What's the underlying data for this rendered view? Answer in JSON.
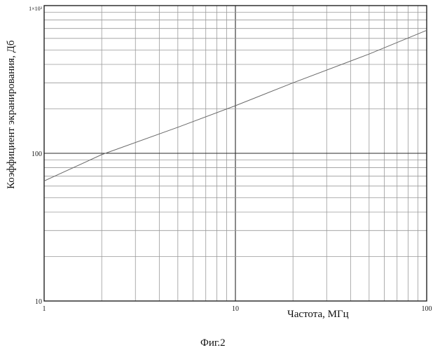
{
  "figure_caption": "Фиг.2",
  "chart_data": {
    "type": "line",
    "xlabel": "Частота, МГц",
    "ylabel": "Коэффициент экранирования, Дб",
    "x_scale": "log",
    "y_scale": "log",
    "xlim": [
      1,
      100
    ],
    "ylim": [
      10,
      1000
    ],
    "x_ticks": [
      {
        "value": 1,
        "label": "1"
      },
      {
        "value": 10,
        "label": "10"
      },
      {
        "value": 100,
        "label": "100"
      }
    ],
    "y_ticks": [
      {
        "value": 10,
        "label": "10"
      },
      {
        "value": 100,
        "label": "100"
      },
      {
        "value": 1000,
        "label": "1×10³"
      }
    ],
    "grid": true,
    "series": [
      {
        "x": [
          1,
          2,
          5,
          10,
          20,
          50,
          100
        ],
        "y": [
          65,
          98,
          150,
          210,
          300,
          470,
          680
        ]
      }
    ]
  }
}
